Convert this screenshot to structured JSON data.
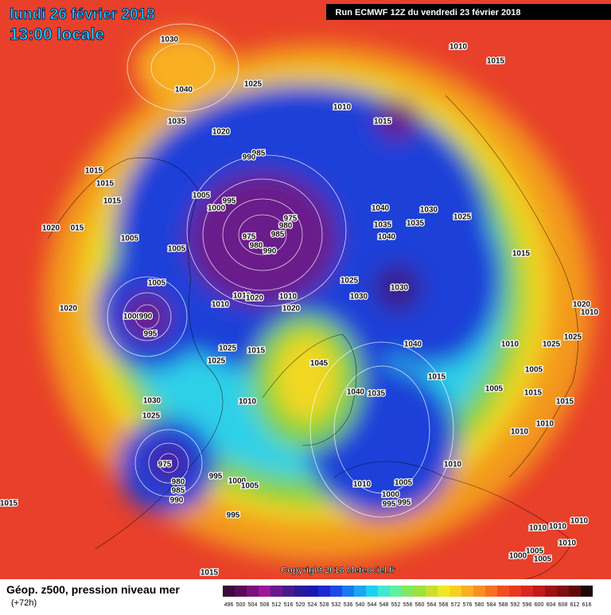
{
  "header": {
    "title": "lundi 26 février 2018",
    "subtitle": "13:00 locale",
    "run": "Run ECMWF 12Z du vendredi 23 février 2018"
  },
  "map": {
    "copyright": "Copyright 2018 Meteociel.fr",
    "isobar_labels": [
      "1030",
      "1040",
      "1025",
      "1035",
      "1020",
      "1010",
      "1015",
      "1010",
      "1015",
      "985",
      "990",
      "1015",
      "1015",
      "1005",
      "995",
      "1000",
      "1015",
      "975",
      "980",
      "1040",
      "1030",
      "1025",
      "1020",
      "015",
      "1005",
      "975",
      "985",
      "980",
      "990",
      "1035",
      "1035",
      "1040",
      "1005",
      "1015",
      "1005",
      "1025",
      "1030",
      "1030",
      "1010",
      "1010",
      "1020",
      "1010",
      "1020",
      "1020",
      "1000",
      "990",
      "1020",
      "1010",
      "995",
      "1025",
      "1025",
      "1010",
      "1025",
      "1015",
      "1040",
      "1025",
      "1045",
      "1005",
      "1015",
      "1040",
      "1035",
      "1005",
      "1015",
      "1030",
      "1010",
      "1015",
      "1025",
      "1010",
      "1010",
      "975",
      "1010",
      "995",
      "1000",
      "1005",
      "980",
      "985",
      "990",
      "1010",
      "1005",
      "1000",
      "995",
      "995",
      "1015",
      "995",
      "1010",
      "1010",
      "1010",
      "1010",
      "1005",
      "1000",
      "1005",
      "1015"
    ]
  },
  "legend": {
    "title": "Géop. z500, pression niveau mer",
    "lead": "(+72h)",
    "levels": [
      496,
      500,
      504,
      508,
      512,
      516,
      520,
      524,
      528,
      532,
      536,
      540,
      544,
      548,
      552,
      556,
      560,
      564,
      568,
      572,
      576,
      580,
      584,
      588,
      592,
      596,
      600,
      604,
      608,
      612,
      616
    ],
    "colors": [
      "#3a0a3a",
      "#5a0a5a",
      "#7a107a",
      "#9a189a",
      "#6a1a8a",
      "#4a1a8a",
      "#2a1a9a",
      "#1a1ab0",
      "#1a2ad0",
      "#1a4ae8",
      "#1a7af0",
      "#1aa8f0",
      "#20d0f0",
      "#40e8d0",
      "#60f0a0",
      "#80e860",
      "#a0e040",
      "#c8e030",
      "#f0e820",
      "#f8d020",
      "#f8b020",
      "#f89020",
      "#f87020",
      "#f05020",
      "#e83a20",
      "#d82820",
      "#c01a1a",
      "#a01010",
      "#801010",
      "#600a0a",
      "#200808"
    ]
  }
}
